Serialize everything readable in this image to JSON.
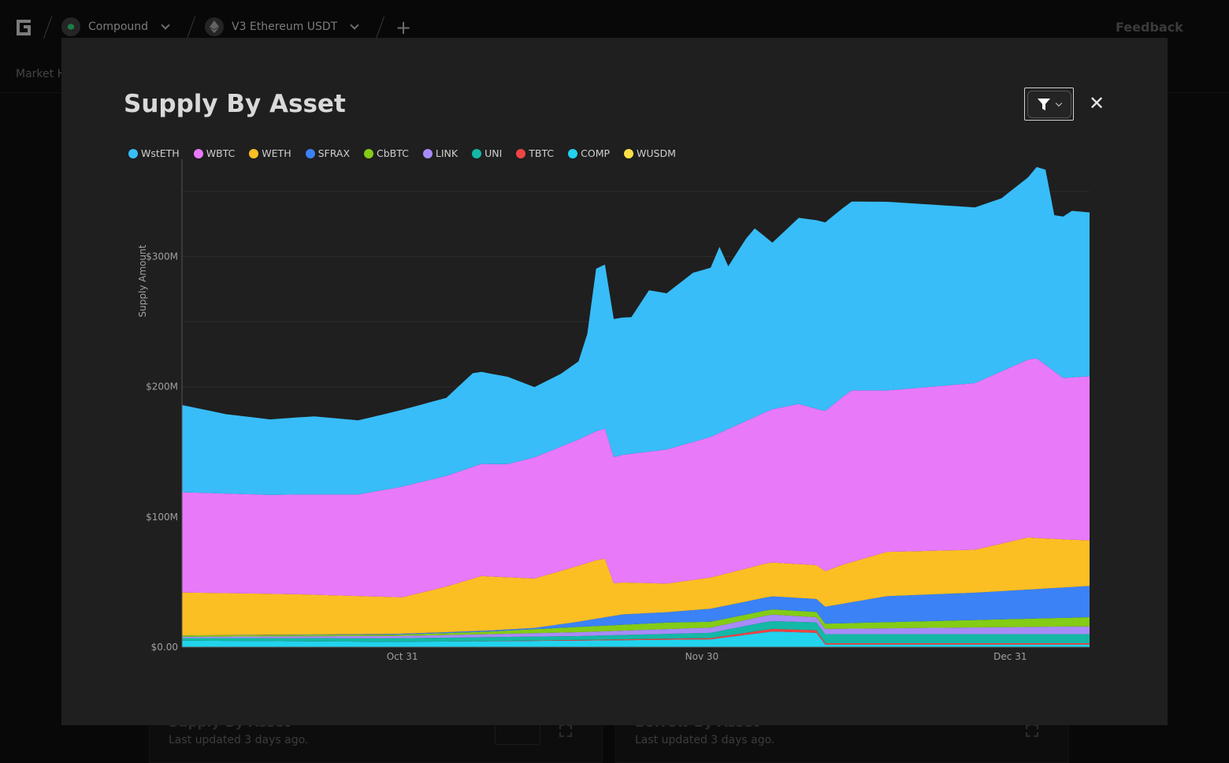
{
  "header": {
    "protocol": "Compound",
    "market": "V3 Ethereum USDT",
    "feedback": "Feedback",
    "subnav": "Market H"
  },
  "background_cards": [
    {
      "title": "Supply By Asset",
      "updated": "Last updated 3 days ago."
    },
    {
      "title": "Borrow By Asset",
      "updated": "Last updated 3 days ago."
    }
  ],
  "modal": {
    "title": "Supply By Asset",
    "close_symbol": "✕"
  },
  "colors": {
    "WstETH": "#38bdf8",
    "WBTC": "#e879f9",
    "WETH": "#fbbf24",
    "SFRAX": "#3b82f6",
    "CbBTC": "#84cc16",
    "LINK": "#a78bfa",
    "UNI": "#14b8a6",
    "TBTC": "#ef4444",
    "COMP": "#22d3ee",
    "WUSDM": "#fde047"
  },
  "chart_data": {
    "type": "area",
    "stacked": true,
    "ylabel": "Supply Amount",
    "yticks": [
      "$0.00",
      "$100M",
      "$200M",
      "$300M"
    ],
    "ylim": [
      0,
      370000000
    ],
    "xtick_labels": [
      "Oct 31",
      "Nov 30",
      "Dec 31"
    ],
    "xtick_index": [
      25,
      59,
      94
    ],
    "n_points": 104,
    "series": [
      {
        "name": "COMP",
        "anchors": [
          [
            0,
            5
          ],
          [
            24,
            4
          ],
          [
            45,
            5
          ],
          [
            60,
            6
          ],
          [
            67,
            12
          ],
          [
            72,
            11
          ],
          [
            73,
            2
          ],
          [
            103,
            2
          ]
        ]
      },
      {
        "name": "TBTC",
        "anchors": [
          [
            0,
            0
          ],
          [
            30,
            0
          ],
          [
            60,
            1
          ],
          [
            67,
            2
          ],
          [
            72,
            2
          ],
          [
            73,
            1
          ],
          [
            103,
            1
          ]
        ]
      },
      {
        "name": "UNI",
        "anchors": [
          [
            0,
            2
          ],
          [
            30,
            3
          ],
          [
            45,
            3
          ],
          [
            60,
            4
          ],
          [
            66,
            6
          ],
          [
            72,
            6
          ],
          [
            73,
            7
          ],
          [
            103,
            7
          ]
        ]
      },
      {
        "name": "LINK",
        "anchors": [
          [
            0,
            1
          ],
          [
            30,
            2
          ],
          [
            45,
            3
          ],
          [
            60,
            4
          ],
          [
            67,
            5
          ],
          [
            72,
            4
          ],
          [
            73,
            4
          ],
          [
            103,
            6
          ]
        ]
      },
      {
        "name": "CbBTC",
        "anchors": [
          [
            0,
            1
          ],
          [
            25,
            1
          ],
          [
            35,
            2
          ],
          [
            45,
            4
          ],
          [
            55,
            5
          ],
          [
            65,
            4
          ],
          [
            72,
            4
          ],
          [
            73,
            4
          ],
          [
            103,
            7
          ]
        ]
      },
      {
        "name": "SFRAX",
        "anchors": [
          [
            0,
            0
          ],
          [
            40,
            1
          ],
          [
            45,
            4
          ],
          [
            50,
            8
          ],
          [
            55,
            8
          ],
          [
            60,
            10
          ],
          [
            66,
            10
          ],
          [
            72,
            10
          ],
          [
            73,
            13
          ],
          [
            80,
            20
          ],
          [
            90,
            21
          ],
          [
            103,
            24
          ]
        ]
      },
      {
        "name": "WETH",
        "anchors": [
          [
            0,
            33
          ],
          [
            13,
            31
          ],
          [
            25,
            28
          ],
          [
            30,
            35
          ],
          [
            34,
            42
          ],
          [
            40,
            38
          ],
          [
            47,
            45
          ],
          [
            48,
            45
          ],
          [
            49,
            25
          ],
          [
            55,
            22
          ],
          [
            60,
            24
          ],
          [
            66,
            26
          ],
          [
            72,
            26
          ],
          [
            75,
            30
          ],
          [
            80,
            34
          ],
          [
            90,
            33
          ],
          [
            96,
            40
          ],
          [
            100,
            37
          ],
          [
            103,
            35
          ]
        ]
      },
      {
        "name": "WBTC",
        "anchors": [
          [
            0,
            77
          ],
          [
            10,
            76
          ],
          [
            20,
            78
          ],
          [
            25,
            85
          ],
          [
            30,
            85
          ],
          [
            37,
            87
          ],
          [
            40,
            93
          ],
          [
            45,
            97
          ],
          [
            48,
            100
          ],
          [
            49,
            97
          ],
          [
            55,
            103
          ],
          [
            60,
            108
          ],
          [
            66,
            116
          ],
          [
            70,
            123
          ],
          [
            72,
            120
          ],
          [
            76,
            132
          ],
          [
            80,
            124
          ],
          [
            90,
            128
          ],
          [
            97,
            138
          ],
          [
            100,
            124
          ],
          [
            103,
            126
          ]
        ]
      },
      {
        "name": "WstETH",
        "anchors": [
          [
            0,
            67
          ],
          [
            5,
            61
          ],
          [
            10,
            58
          ],
          [
            15,
            60
          ],
          [
            20,
            57
          ],
          [
            25,
            59
          ],
          [
            30,
            60
          ],
          [
            33,
            72
          ],
          [
            37,
            67
          ],
          [
            40,
            54
          ],
          [
            43,
            56
          ],
          [
            45,
            60
          ],
          [
            46,
            78
          ],
          [
            47,
            125
          ],
          [
            48,
            126
          ],
          [
            49,
            106
          ],
          [
            51,
            105
          ],
          [
            53,
            124
          ],
          [
            55,
            120
          ],
          [
            58,
            130
          ],
          [
            60,
            130
          ],
          [
            61,
            143
          ],
          [
            62,
            125
          ],
          [
            64,
            140
          ],
          [
            65,
            145
          ],
          [
            67,
            128
          ],
          [
            70,
            143
          ],
          [
            72,
            145
          ],
          [
            76,
            145
          ],
          [
            80,
            145
          ],
          [
            85,
            140
          ],
          [
            90,
            135
          ],
          [
            93,
            133
          ],
          [
            96,
            140
          ],
          [
            97,
            147
          ],
          [
            98,
            150
          ],
          [
            99,
            120
          ],
          [
            100,
            124
          ],
          [
            101,
            128
          ],
          [
            103,
            126
          ]
        ]
      },
      {
        "name": "WUSDM",
        "anchors": [
          [
            0,
            0
          ],
          [
            103,
            0
          ]
        ]
      }
    ]
  }
}
